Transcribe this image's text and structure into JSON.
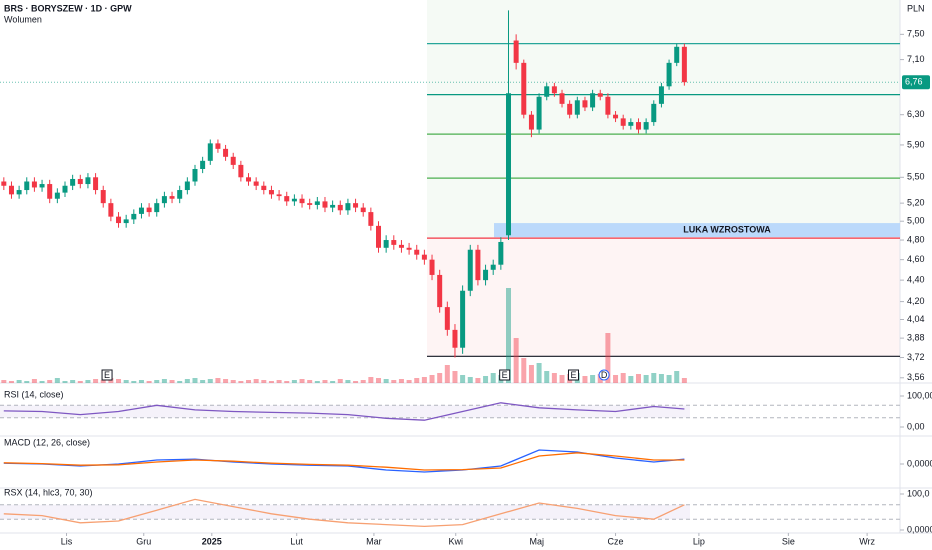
{
  "chart_data": [
    {
      "type": "candlestick",
      "title": "BRS · BORYSZEW · 1D · GPW",
      "subtitle": "Wolumen",
      "currency": "PLN",
      "log_scale": true,
      "ylim": [
        3.52,
        8.08
      ],
      "yticks": [
        {
          "value": 7.5,
          "label": "7,50"
        },
        {
          "value": 7.1,
          "label": "7,10"
        },
        {
          "value": 6.3,
          "label": "6,30"
        },
        {
          "value": 5.9,
          "label": "5,90"
        },
        {
          "value": 5.5,
          "label": "5,50"
        },
        {
          "value": 5.2,
          "label": "5,20"
        },
        {
          "value": 5.0,
          "label": "5,00"
        },
        {
          "value": 4.8,
          "label": "4,80"
        },
        {
          "value": 4.6,
          "label": "4,60"
        },
        {
          "value": 4.4,
          "label": "4,40"
        },
        {
          "value": 4.2,
          "label": "4,20"
        },
        {
          "value": 4.04,
          "label": "4,04"
        },
        {
          "value": 3.88,
          "label": "3,88"
        },
        {
          "value": 3.72,
          "label": "3,72"
        },
        {
          "value": 3.56,
          "label": "3,56"
        }
      ],
      "xlim": [
        -0.5,
        117.2
      ],
      "xticks": [
        {
          "value": 8.2,
          "label": "Lis"
        },
        {
          "value": 18.3,
          "label": "Gru"
        },
        {
          "value": 27.2,
          "label": "2025"
        },
        {
          "value": 38.3,
          "label": "Lut"
        },
        {
          "value": 48.4,
          "label": "Mar"
        },
        {
          "value": 59.1,
          "label": "Kwi"
        },
        {
          "value": 69.7,
          "label": "Maj"
        },
        {
          "value": 80,
          "label": "Cze"
        },
        {
          "value": 90.9,
          "label": "Lip"
        },
        {
          "value": 102.6,
          "label": "Sie"
        },
        {
          "value": 112.9,
          "label": "Wrz"
        }
      ],
      "last_price": {
        "value": 6.76,
        "label": "6,76"
      },
      "up_color": "#089981",
      "down_color": "#f23645",
      "open": [
        5.45,
        5.4,
        5.3,
        5.35,
        5.45,
        5.38,
        5.42,
        5.25,
        5.32,
        5.4,
        5.48,
        5.42,
        5.5,
        5.35,
        5.2,
        5.05,
        4.98,
        5.02,
        5.08,
        5.15,
        5.1,
        5.2,
        5.28,
        5.25,
        5.35,
        5.45,
        5.6,
        5.7,
        5.92,
        5.85,
        5.75,
        5.65,
        5.5,
        5.45,
        5.4,
        5.35,
        5.3,
        5.28,
        5.22,
        5.25,
        5.2,
        5.18,
        5.22,
        5.15,
        5.18,
        5.12,
        5.2,
        5.15,
        5.1,
        4.95,
        4.72,
        4.8,
        4.75,
        4.72,
        4.7,
        4.65,
        4.6,
        4.45,
        4.15,
        3.95,
        3.8,
        4.3,
        4.7,
        4.4,
        4.5,
        4.55,
        4.85,
        7.4,
        7.05,
        6.3,
        6.1,
        6.55,
        6.7,
        6.6,
        6.45,
        6.3,
        6.5,
        6.4,
        6.6,
        6.55,
        6.3,
        6.25,
        6.15,
        6.2,
        6.1,
        6.2,
        6.45,
        6.7,
        7.05,
        7.3
      ],
      "high": [
        5.5,
        5.45,
        5.4,
        5.5,
        5.5,
        5.47,
        5.47,
        5.37,
        5.45,
        5.53,
        5.53,
        5.55,
        5.55,
        5.4,
        5.25,
        5.1,
        5.07,
        5.13,
        5.2,
        5.2,
        5.25,
        5.33,
        5.33,
        5.4,
        5.5,
        5.65,
        5.75,
        5.97,
        5.97,
        5.9,
        5.8,
        5.7,
        5.55,
        5.5,
        5.45,
        5.4,
        5.35,
        5.33,
        5.3,
        5.3,
        5.25,
        5.27,
        5.27,
        5.23,
        5.23,
        5.25,
        5.25,
        5.2,
        5.15,
        5.0,
        4.85,
        4.85,
        4.8,
        4.77,
        4.75,
        4.7,
        4.65,
        4.5,
        4.2,
        4.0,
        4.35,
        4.75,
        4.75,
        4.55,
        4.6,
        4.83,
        7.9,
        7.5,
        7.1,
        6.35,
        6.6,
        6.75,
        6.75,
        6.65,
        6.5,
        6.55,
        6.55,
        6.65,
        6.65,
        6.6,
        6.35,
        6.3,
        6.25,
        6.25,
        6.25,
        6.5,
        6.75,
        7.1,
        7.35,
        7.35
      ],
      "low": [
        5.35,
        5.25,
        5.25,
        5.3,
        5.33,
        5.33,
        5.2,
        5.2,
        5.27,
        5.35,
        5.37,
        5.37,
        5.3,
        5.15,
        5.0,
        4.93,
        4.93,
        4.97,
        5.03,
        5.05,
        5.05,
        5.15,
        5.2,
        5.2,
        5.3,
        5.4,
        5.55,
        5.65,
        5.8,
        5.7,
        5.6,
        5.45,
        5.4,
        5.35,
        5.3,
        5.25,
        5.23,
        5.17,
        5.17,
        5.15,
        5.13,
        5.13,
        5.1,
        5.1,
        5.07,
        5.07,
        5.1,
        5.05,
        4.9,
        4.67,
        4.67,
        4.7,
        4.67,
        4.65,
        4.6,
        4.55,
        4.4,
        4.1,
        3.9,
        3.72,
        3.75,
        4.25,
        4.35,
        4.35,
        4.45,
        4.5,
        4.8,
        6.95,
        6.25,
        6.0,
        6.05,
        6.5,
        6.55,
        6.4,
        6.25,
        6.25,
        6.35,
        6.35,
        6.5,
        6.25,
        6.2,
        6.1,
        6.1,
        6.05,
        6.05,
        6.15,
        6.4,
        6.65,
        7.0,
        6.71
      ],
      "close": [
        5.4,
        5.3,
        5.35,
        5.45,
        5.38,
        5.42,
        5.25,
        5.32,
        5.4,
        5.48,
        5.42,
        5.5,
        5.35,
        5.2,
        5.05,
        4.98,
        5.02,
        5.08,
        5.15,
        5.1,
        5.2,
        5.28,
        5.25,
        5.35,
        5.45,
        5.6,
        5.7,
        5.92,
        5.85,
        5.75,
        5.65,
        5.5,
        5.45,
        5.4,
        5.35,
        5.3,
        5.28,
        5.22,
        5.25,
        5.2,
        5.18,
        5.22,
        5.15,
        5.18,
        5.12,
        5.2,
        5.15,
        5.1,
        4.95,
        4.72,
        4.8,
        4.75,
        4.72,
        4.7,
        4.65,
        4.6,
        4.45,
        4.15,
        3.95,
        3.8,
        4.3,
        4.7,
        4.4,
        4.5,
        4.55,
        4.78,
        6.6,
        7.05,
        6.3,
        6.1,
        6.55,
        6.7,
        6.6,
        6.45,
        6.3,
        6.5,
        6.4,
        6.6,
        6.55,
        6.3,
        6.25,
        6.15,
        6.2,
        6.1,
        6.2,
        6.45,
        6.7,
        7.05,
        7.3,
        6.76
      ],
      "volume": [
        3,
        2,
        3,
        2,
        4,
        2,
        3,
        5,
        2,
        3,
        2,
        3,
        4,
        3,
        5,
        4,
        3,
        2,
        3,
        2,
        3,
        4,
        3,
        2,
        4,
        5,
        3,
        4,
        5,
        4,
        3,
        2,
        3,
        4,
        3,
        2,
        3,
        2,
        3,
        4,
        3,
        2,
        3,
        2,
        4,
        3,
        2,
        3,
        6,
        5,
        4,
        3,
        4,
        3,
        5,
        6,
        8,
        10,
        18,
        12,
        8,
        6,
        5,
        7,
        10,
        8,
        95,
        45,
        25,
        18,
        20,
        12,
        10,
        8,
        9,
        10,
        7,
        8,
        9,
        50,
        8,
        10,
        7,
        9,
        8,
        10,
        9,
        8,
        12,
        5
      ],
      "levels": [
        {
          "value": 7.35,
          "color": "#26a69a"
        },
        {
          "value": 6.58,
          "color": "#089981"
        },
        {
          "value": 6.04,
          "color": "#4caf50"
        },
        {
          "value": 5.49,
          "color": "#4caf50"
        },
        {
          "value": 4.82,
          "color": "#f23645"
        },
        {
          "value": 3.73,
          "color": "#131722"
        }
      ],
      "zone": {
        "label": "LUKA WZROSTOWA",
        "low": 4.83,
        "high": 4.98,
        "color": "#bbd9fb"
      },
      "events": [
        {
          "x": 13.5,
          "label": "E"
        },
        {
          "x": 65.5,
          "label": "E"
        },
        {
          "x": 74.5,
          "label": "E"
        },
        {
          "x": 78.5,
          "label": "D"
        }
      ]
    },
    {
      "type": "line",
      "title": "RSI (14, close)",
      "ylim": [
        0,
        100
      ],
      "yticks": [
        {
          "value": 100,
          "label": "100,00"
        },
        {
          "value": 0,
          "label": "0,00"
        }
      ],
      "bands": [
        30,
        70
      ],
      "x": [
        0,
        5,
        10,
        15,
        20,
        25,
        30,
        35,
        40,
        45,
        50,
        55,
        60,
        65,
        70,
        75,
        80,
        85,
        89
      ],
      "series": [
        {
          "color": "#7e57c2",
          "values": [
            52,
            50,
            40,
            50,
            70,
            55,
            50,
            47,
            45,
            40,
            28,
            22,
            50,
            78,
            62,
            55,
            50,
            66,
            58
          ]
        }
      ]
    },
    {
      "type": "line",
      "title": "MACD (12, 26, close)",
      "ylim": [
        -0.5,
        0.5
      ],
      "yticks": [
        {
          "value": 0,
          "label": "0,0000"
        }
      ],
      "x": [
        0,
        5,
        10,
        15,
        20,
        25,
        30,
        35,
        40,
        45,
        50,
        55,
        60,
        65,
        70,
        75,
        80,
        85,
        89
      ],
      "series": [
        {
          "color": "#2962ff",
          "values": [
            0.02,
            0.0,
            -0.05,
            0.0,
            0.1,
            0.12,
            0.05,
            0.0,
            -0.03,
            -0.05,
            -0.15,
            -0.2,
            -0.15,
            -0.05,
            0.35,
            0.3,
            0.15,
            0.05,
            0.12
          ]
        },
        {
          "color": "#ff6d00",
          "values": [
            0.03,
            0.01,
            -0.03,
            -0.02,
            0.05,
            0.1,
            0.07,
            0.02,
            -0.01,
            -0.03,
            -0.08,
            -0.15,
            -0.14,
            -0.1,
            0.2,
            0.28,
            0.2,
            0.1,
            0.1
          ]
        }
      ]
    },
    {
      "type": "line",
      "title": "RSX (14, hlc3, 70, 30)",
      "ylim": [
        0,
        100
      ],
      "yticks": [
        {
          "value": 100,
          "label": "100,0"
        },
        {
          "value": 0,
          "label": "0,0000"
        }
      ],
      "bands": [
        30,
        70
      ],
      "x": [
        0,
        5,
        10,
        15,
        20,
        25,
        30,
        35,
        40,
        45,
        50,
        55,
        60,
        65,
        70,
        75,
        80,
        85,
        89
      ],
      "series": [
        {
          "color": "#f7a072",
          "values": [
            45,
            40,
            20,
            25,
            55,
            85,
            65,
            45,
            30,
            20,
            15,
            10,
            15,
            45,
            75,
            60,
            40,
            30,
            70
          ]
        }
      ]
    }
  ]
}
